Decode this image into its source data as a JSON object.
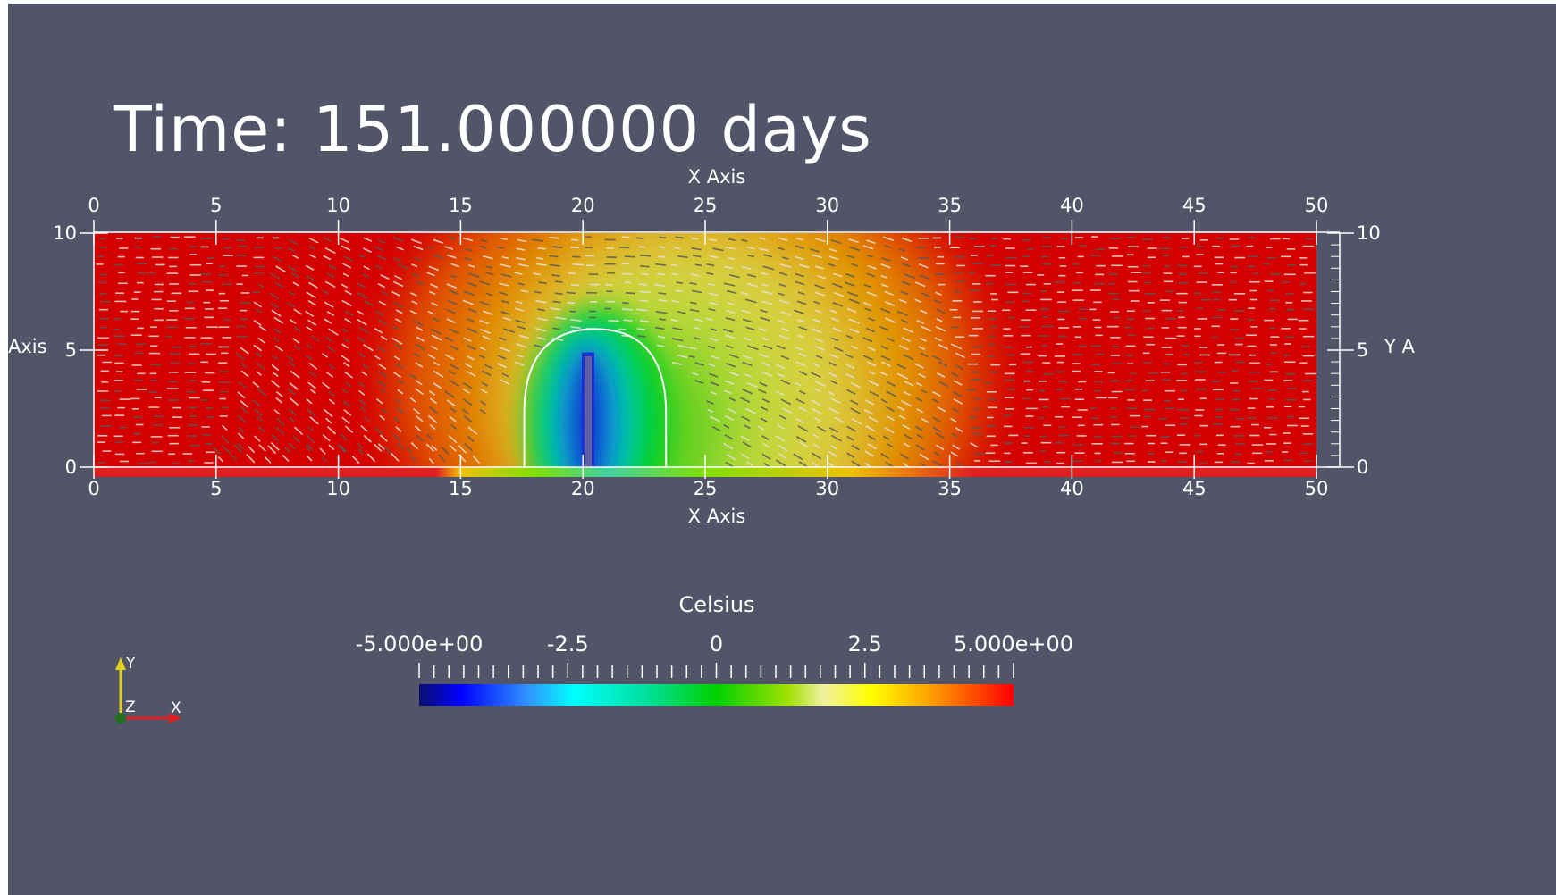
{
  "time_label": "Time: 151.000000 days",
  "colors": {
    "background": "#525468",
    "axis": "#ffffff",
    "hot": "#d40000",
    "cold": "#0a1fb0",
    "glyph_light": "#e8e0d8",
    "glyph_dark": "#555555"
  },
  "chart_data": {
    "type": "heatmap",
    "field": "Celsius",
    "xlabel": "X Axis",
    "ylabel": "Y Axis",
    "xlim": [
      0,
      50
    ],
    "ylim": [
      0,
      10
    ],
    "x_ticks": [
      "0",
      "5",
      "10",
      "15",
      "20",
      "25",
      "30",
      "35",
      "40",
      "45",
      "50"
    ],
    "y_ticks": [
      "0",
      "5",
      "10"
    ],
    "y_ticks_right": [
      "0",
      "5",
      "10"
    ],
    "y_label_left": "Axis",
    "y_label_right": "Y A",
    "cold_region": {
      "center_x": 20.5,
      "base_y": 0,
      "half_width": 2.9,
      "height": 5.9
    },
    "cold_core": {
      "x": 20.5,
      "y_top": 4.9,
      "y_bottom": 0.0,
      "value": -5.0
    },
    "colorbar": {
      "title": "Celsius",
      "range": [
        -5,
        5
      ],
      "tick_labels": [
        "-5.000e+00",
        "-2.5",
        "0",
        "2.5",
        "5.000e+00"
      ],
      "tick_values": [
        -5,
        -2.5,
        0,
        2.5,
        5
      ]
    }
  },
  "orientation": {
    "y": "Y",
    "z": "Z",
    "x": "X"
  }
}
